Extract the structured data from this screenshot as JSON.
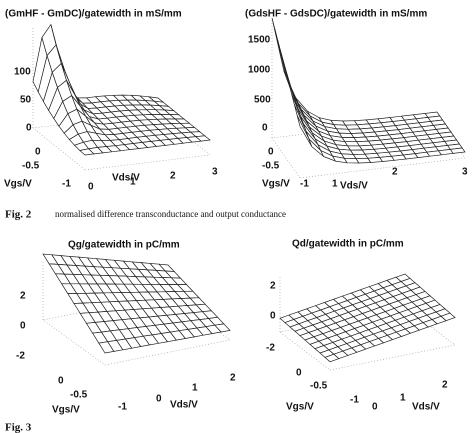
{
  "figures": [
    {
      "panels": [
        {
          "title": "(GmHF - GmDC)/gatewidth in mS/mm",
          "z_ticks": [
            "100",
            "50",
            "0"
          ],
          "vgs_ticks": [
            "0",
            "-0.5",
            "-1"
          ],
          "vgs_label": "Vgs/V",
          "vds_ticks": [
            "0",
            "1",
            "2",
            "3"
          ],
          "vds_label": "Vds/V"
        },
        {
          "title": "(GdsHF - GdsDC)/gatewidth in mS/mm",
          "z_ticks": [
            "1500",
            "1000",
            "500",
            "0"
          ],
          "vgs_ticks": [
            "0",
            "-0.5",
            "-1"
          ],
          "vgs_label": "Vgs/V",
          "vds_ticks": [
            "1",
            "2",
            "3"
          ],
          "vds_label": "Vds/V"
        }
      ],
      "caption_label": "Fig. 2",
      "caption": "normalised difference transconductance and output conductance"
    },
    {
      "panels": [
        {
          "title": "Qg/gatewidth in pC/mm",
          "z_ticks": [
            "2",
            "0",
            "-2"
          ],
          "vgs_ticks": [
            "0",
            "-0.5",
            "-1"
          ],
          "vgs_label": "Vgs/V",
          "vds_ticks": [
            "0",
            "1",
            "2"
          ],
          "vds_label": "Vds/V"
        },
        {
          "title": "Qd/gatewidth in pC/mm",
          "z_ticks": [
            "2",
            "0",
            "-2"
          ],
          "vgs_ticks": [
            "0",
            "-0.5",
            "-1"
          ],
          "vgs_label": "Vgs/V",
          "vds_ticks": [
            "0",
            "1",
            "2"
          ],
          "vds_label": "Vds/V"
        }
      ],
      "caption_label": "Fig. 3"
    }
  ]
}
